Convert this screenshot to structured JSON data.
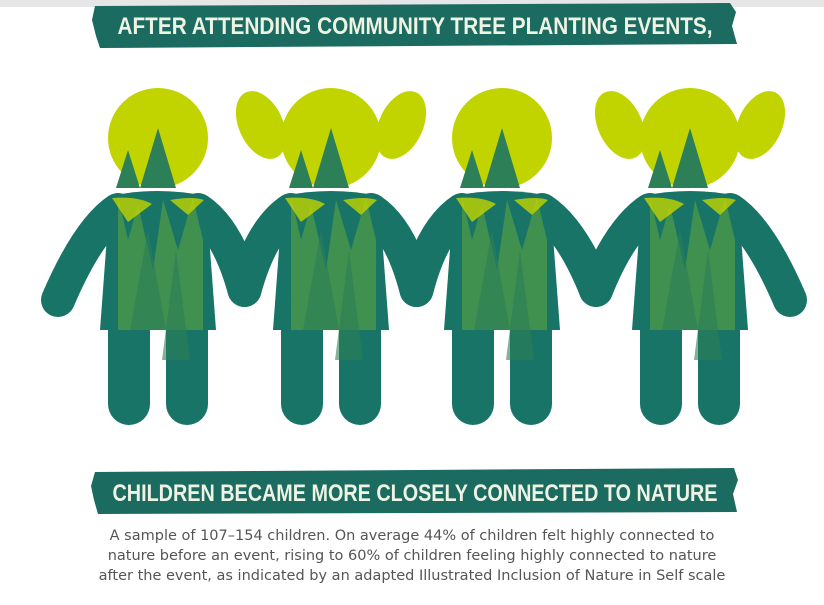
{
  "header": {
    "title": "AFTER ATTENDING COMMUNITY TREE PLANTING EVENTS,"
  },
  "footer": {
    "title": "CHILDREN BECAME MORE CLOSELY CONNECTED TO NATURE"
  },
  "caption": {
    "lines": [
      "A sample of 107–154 children. On average 44% of children felt highly connected to",
      "nature before an event, rising to 60% of children feeling highly connected to nature",
      "after the event, as indicated by an adapted Illustrated Inclusion of Nature in Self scale"
    ]
  }
}
